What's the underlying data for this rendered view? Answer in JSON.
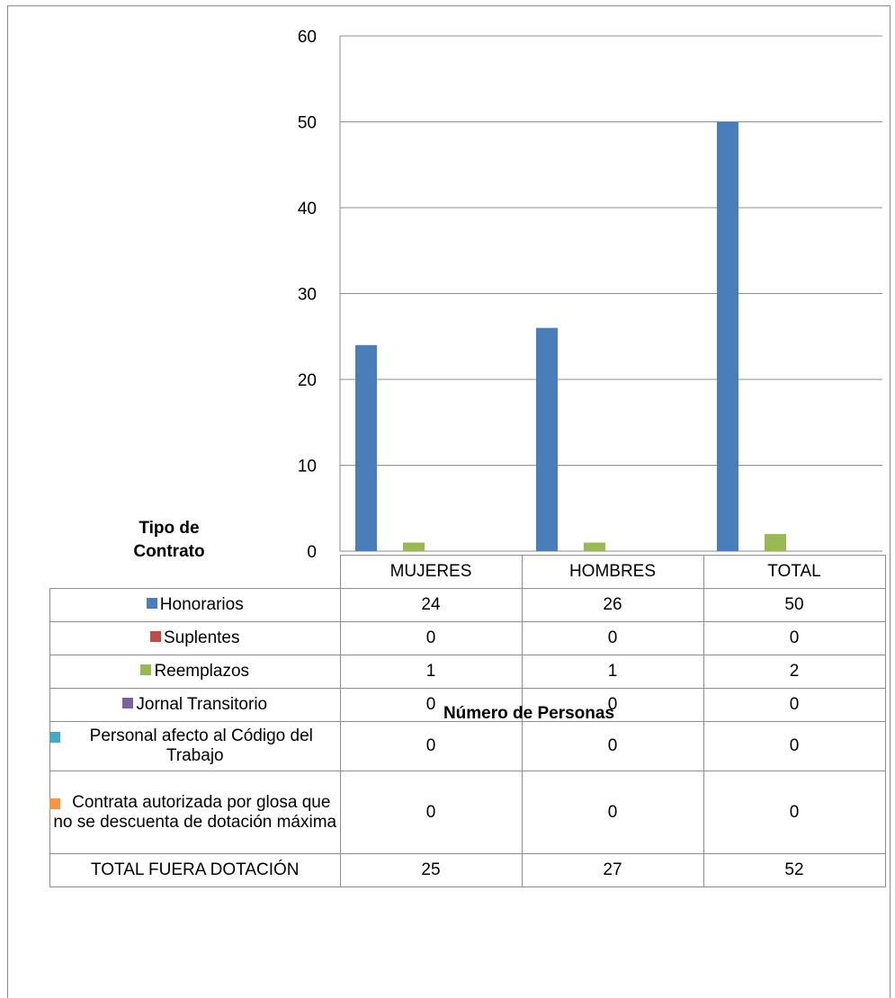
{
  "chart_data": {
    "type": "bar",
    "ylabel": "Tipo de Contrato",
    "xlabel": "Número de Personas",
    "categories": [
      "MUJERES",
      "HOMBRES",
      "TOTAL"
    ],
    "ylim": [
      0,
      60
    ],
    "yticks": [
      0,
      10,
      20,
      30,
      40,
      50,
      60
    ],
    "grid": true,
    "legend": "data-table",
    "series": [
      {
        "name": "Honorarios",
        "values": [
          24,
          26,
          50
        ],
        "color": "#4a7ebb"
      },
      {
        "name": "Suplentes",
        "values": [
          0,
          0,
          0
        ],
        "color": "#be4b48"
      },
      {
        "name": "Reemplazos",
        "values": [
          1,
          1,
          2
        ],
        "color": "#98b954"
      },
      {
        "name": "Jornal Transitorio",
        "values": [
          0,
          0,
          0
        ],
        "color": "#7d60a0"
      },
      {
        "name": "Personal afecto al Código del Trabajo",
        "values": [
          0,
          0,
          0
        ],
        "color": "#46aac5"
      },
      {
        "name": "Contrata autorizada por glosa que no se descuenta de dotación máxima",
        "values": [
          0,
          0,
          0
        ],
        "color": "#f69546"
      }
    ],
    "total_row": {
      "label": "TOTAL FUERA DOTACIÓN",
      "values": [
        25,
        27,
        52
      ]
    }
  }
}
